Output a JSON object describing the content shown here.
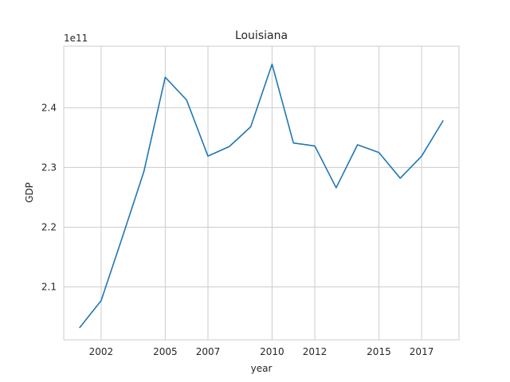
{
  "chart_data": {
    "type": "line",
    "title": "Louisiana",
    "xlabel": "year",
    "ylabel": "GDP",
    "offset_label": "1e11",
    "x_tick_labels": [
      "2002",
      "2005",
      "2007",
      "2010",
      "2012",
      "2015",
      "2017"
    ],
    "y_tick_labels": [
      "2.1",
      "2.2",
      "2.3",
      "2.4"
    ],
    "y_ticks": [
      2.1,
      2.2,
      2.3,
      2.4
    ],
    "xlim": [
      2000.25,
      2018.75
    ],
    "ylim": [
      2.0114,
      2.5031
    ],
    "grid": true,
    "color": "#1f77b4",
    "series": [
      {
        "x": [
          2001,
          2002,
          2003,
          2004,
          2005,
          2006,
          2007,
          2008,
          2009,
          2010,
          2011,
          2012,
          2013,
          2014,
          2015,
          2016,
          2017,
          2018
        ],
        "y": [
          2.032,
          2.077,
          2.184,
          2.293,
          2.451,
          2.413,
          2.319,
          2.335,
          2.368,
          2.473,
          2.341,
          2.336,
          2.266,
          2.338,
          2.325,
          2.282,
          2.319,
          2.378
        ]
      }
    ]
  }
}
